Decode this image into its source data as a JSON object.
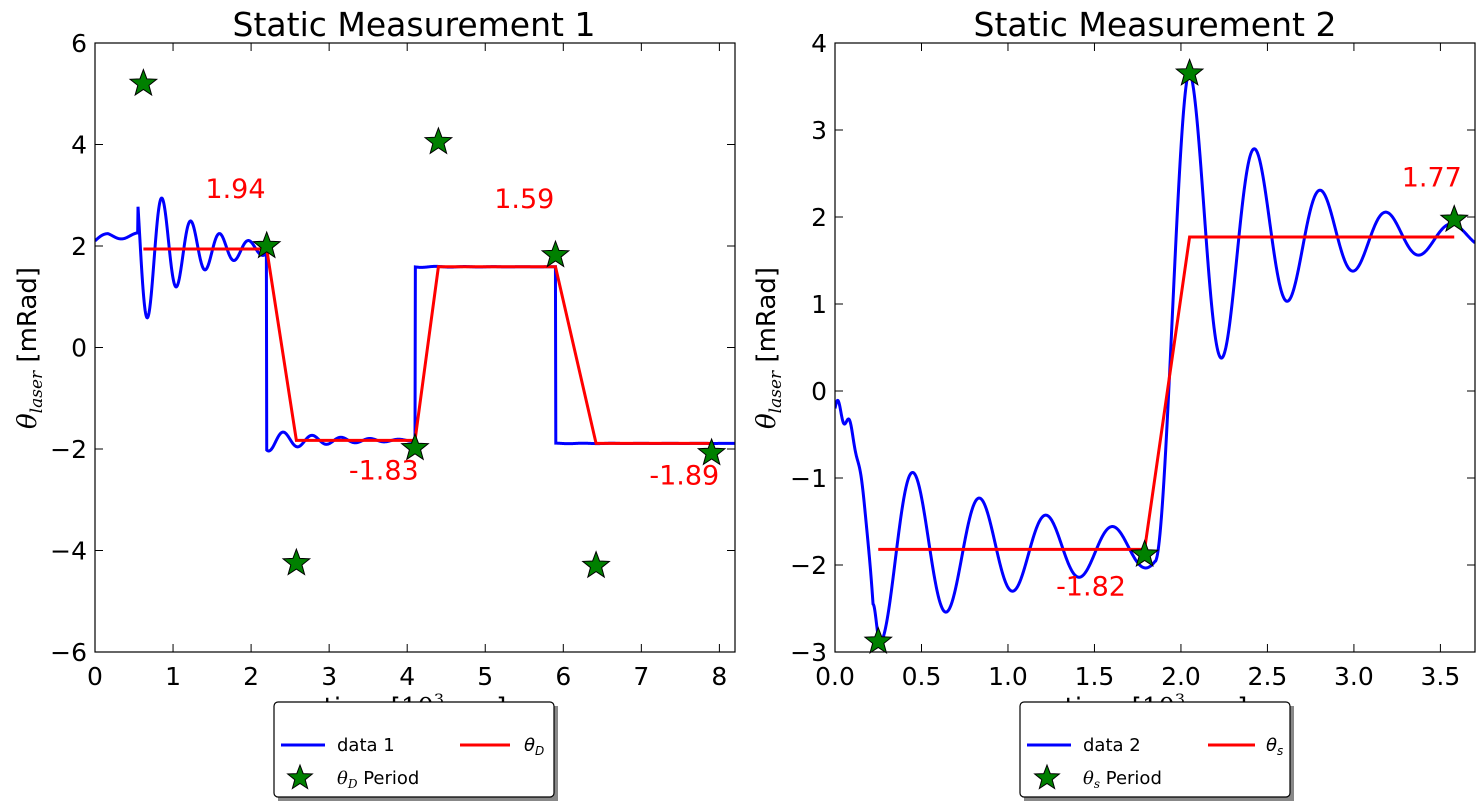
{
  "chart_data": [
    {
      "type": "line",
      "title": "Static Measurement 1",
      "xlabel": "time [10^3 sec]",
      "ylabel": "θ_laser [mRad]",
      "xlim": [
        0,
        8.2
      ],
      "ylim": [
        -6,
        6
      ],
      "xticks": [
        0,
        1,
        2,
        3,
        4,
        5,
        6,
        7,
        8
      ],
      "yticks": [
        -6,
        -4,
        -2,
        0,
        2,
        4,
        6
      ],
      "xtick_labels": [
        "0",
        "1",
        "2",
        "3",
        "4",
        "5",
        "6",
        "7",
        "8"
      ],
      "ytick_labels": [
        "−6",
        "−4",
        "−2",
        "0",
        "2",
        "4",
        "6"
      ],
      "grid": false,
      "series": [
        {
          "name": "data 1",
          "color": "#0000ff",
          "kind": "damped-oscillation",
          "segments": [
            {
              "t0": 0.0,
              "t1": 0.55,
              "base": 2.05,
              "flat": 2.2
            },
            {
              "t0": 0.55,
              "t1": 2.2,
              "level": 1.94,
              "A": 3.3,
              "tau": 0.62,
              "period": 0.37,
              "phase": 0.12
            },
            {
              "t0": 2.2,
              "t1": 4.1,
              "level": -1.83,
              "A": -2.45,
              "tau": 0.75,
              "period": 0.37,
              "phase": 0.38
            },
            {
              "t0": 4.1,
              "t1": 5.9,
              "level": 1.59,
              "A": 2.45,
              "tau": 0.72,
              "period": 0.37,
              "phase": 0.3
            },
            {
              "t0": 5.9,
              "t1": 8.2,
              "level": -1.89,
              "A": -2.45,
              "tau": 0.9,
              "period": 0.37,
              "phase": 0.52
            }
          ]
        },
        {
          "name": "θ_D",
          "color": "#ff0000",
          "x": [
            0.62,
            2.2,
            2.58,
            4.1,
            4.4,
            5.9,
            6.42,
            7.9
          ],
          "y": [
            1.94,
            1.94,
            -1.83,
            -1.83,
            1.59,
            1.59,
            -1.89,
            -1.89
          ]
        },
        {
          "name": "θ_D Period",
          "color": "#008000",
          "marker": "star",
          "x": [
            0.62,
            2.2,
            2.58,
            4.1,
            4.4,
            5.9,
            6.42,
            7.9
          ],
          "y": [
            5.2,
            2.0,
            -4.25,
            -1.98,
            4.05,
            1.82,
            -4.3,
            -2.08
          ]
        }
      ],
      "annotations": [
        {
          "text": "1.94",
          "x": 1.8,
          "y": 2.95
        },
        {
          "text": "-1.83",
          "x": 3.7,
          "y": -2.6
        },
        {
          "text": "1.59",
          "x": 5.5,
          "y": 2.75
        },
        {
          "text": "-1.89",
          "x": 7.55,
          "y": -2.7
        }
      ],
      "legend": {
        "placement": "below",
        "items": [
          {
            "label": "data 1",
            "type": "line",
            "color": "#0000ff"
          },
          {
            "label": "θ_D",
            "type": "line",
            "color": "#ff0000"
          },
          {
            "label": "θ_D Period",
            "type": "star",
            "color": "#008000"
          }
        ]
      }
    },
    {
      "type": "line",
      "title": "Static Measurement 2",
      "xlabel": "time [10^3 sec]",
      "ylabel": "θ_laser [mRad]",
      "xlim": [
        0,
        3.7
      ],
      "ylim": [
        -3,
        4
      ],
      "xticks": [
        0.0,
        0.5,
        1.0,
        1.5,
        2.0,
        2.5,
        3.0,
        3.5
      ],
      "yticks": [
        -3,
        -2,
        -1,
        0,
        1,
        2,
        3,
        4
      ],
      "xtick_labels": [
        "0.0",
        "0.5",
        "1.0",
        "1.5",
        "2.0",
        "2.5",
        "3.0",
        "3.5"
      ],
      "ytick_labels": [
        "−3",
        "−2",
        "−1",
        "0",
        "1",
        "2",
        "3",
        "4"
      ],
      "grid": false,
      "series": [
        {
          "name": "data 2",
          "color": "#0000ff",
          "kind": "damped-oscillation",
          "segments": [
            {
              "t0": 0.0,
              "t1": 0.22,
              "start": -0.2,
              "dip": -0.45
            },
            {
              "t0": 0.22,
              "t1": 1.85,
              "level": -1.82,
              "A": -1.08,
              "tau": 0.95,
              "period": 0.385,
              "phase": 0.26
            },
            {
              "t0": 1.85,
              "t1": 3.7,
              "level": 1.77,
              "A": 1.9,
              "tau": 0.6,
              "period": 0.38,
              "phase": 2.05
            }
          ]
        },
        {
          "name": "θ_s",
          "color": "#ff0000",
          "x": [
            0.25,
            1.79,
            2.05,
            3.58
          ],
          "y": [
            -1.82,
            -1.82,
            1.77,
            1.77
          ]
        },
        {
          "name": "θ_s Period",
          "color": "#008000",
          "marker": "star",
          "x": [
            0.25,
            1.79,
            2.05,
            3.58
          ],
          "y": [
            -2.88,
            -1.88,
            3.65,
            1.97
          ]
        }
      ],
      "annotations": [
        {
          "text": "1.77",
          "x": 3.45,
          "y": 2.35
        },
        {
          "text": "-1.82",
          "x": 1.48,
          "y": -2.35
        }
      ],
      "legend": {
        "placement": "below",
        "items": [
          {
            "label": "data 2",
            "type": "line",
            "color": "#0000ff"
          },
          {
            "label": "θ_s",
            "type": "line",
            "color": "#ff0000"
          },
          {
            "label": "θ_s Period",
            "type": "star",
            "color": "#008000"
          }
        ]
      }
    }
  ]
}
